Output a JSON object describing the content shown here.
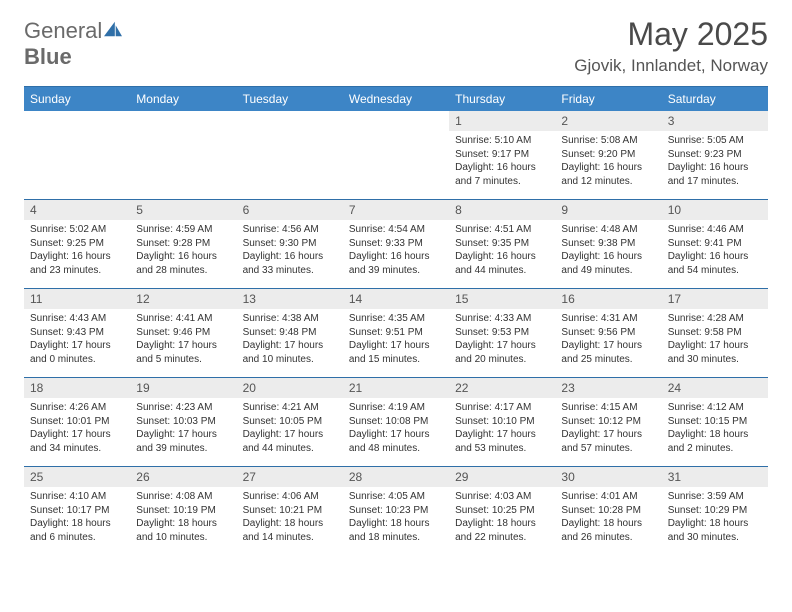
{
  "brand": {
    "part1": "General",
    "part2": "Blue"
  },
  "title": "May 2025",
  "location": "Gjovik, Innlandet, Norway",
  "colors": {
    "header_bg": "#3d85c6",
    "rule": "#2f6fa8",
    "daynum_bg": "#ececec"
  },
  "weekdays": [
    "Sunday",
    "Monday",
    "Tuesday",
    "Wednesday",
    "Thursday",
    "Friday",
    "Saturday"
  ],
  "startOffset": 4,
  "days": [
    {
      "n": 1,
      "sr": "5:10 AM",
      "ss": "9:17 PM",
      "dl": "16 hours and 7 minutes."
    },
    {
      "n": 2,
      "sr": "5:08 AM",
      "ss": "9:20 PM",
      "dl": "16 hours and 12 minutes."
    },
    {
      "n": 3,
      "sr": "5:05 AM",
      "ss": "9:23 PM",
      "dl": "16 hours and 17 minutes."
    },
    {
      "n": 4,
      "sr": "5:02 AM",
      "ss": "9:25 PM",
      "dl": "16 hours and 23 minutes."
    },
    {
      "n": 5,
      "sr": "4:59 AM",
      "ss": "9:28 PM",
      "dl": "16 hours and 28 minutes."
    },
    {
      "n": 6,
      "sr": "4:56 AM",
      "ss": "9:30 PM",
      "dl": "16 hours and 33 minutes."
    },
    {
      "n": 7,
      "sr": "4:54 AM",
      "ss": "9:33 PM",
      "dl": "16 hours and 39 minutes."
    },
    {
      "n": 8,
      "sr": "4:51 AM",
      "ss": "9:35 PM",
      "dl": "16 hours and 44 minutes."
    },
    {
      "n": 9,
      "sr": "4:48 AM",
      "ss": "9:38 PM",
      "dl": "16 hours and 49 minutes."
    },
    {
      "n": 10,
      "sr": "4:46 AM",
      "ss": "9:41 PM",
      "dl": "16 hours and 54 minutes."
    },
    {
      "n": 11,
      "sr": "4:43 AM",
      "ss": "9:43 PM",
      "dl": "17 hours and 0 minutes."
    },
    {
      "n": 12,
      "sr": "4:41 AM",
      "ss": "9:46 PM",
      "dl": "17 hours and 5 minutes."
    },
    {
      "n": 13,
      "sr": "4:38 AM",
      "ss": "9:48 PM",
      "dl": "17 hours and 10 minutes."
    },
    {
      "n": 14,
      "sr": "4:35 AM",
      "ss": "9:51 PM",
      "dl": "17 hours and 15 minutes."
    },
    {
      "n": 15,
      "sr": "4:33 AM",
      "ss": "9:53 PM",
      "dl": "17 hours and 20 minutes."
    },
    {
      "n": 16,
      "sr": "4:31 AM",
      "ss": "9:56 PM",
      "dl": "17 hours and 25 minutes."
    },
    {
      "n": 17,
      "sr": "4:28 AM",
      "ss": "9:58 PM",
      "dl": "17 hours and 30 minutes."
    },
    {
      "n": 18,
      "sr": "4:26 AM",
      "ss": "10:01 PM",
      "dl": "17 hours and 34 minutes."
    },
    {
      "n": 19,
      "sr": "4:23 AM",
      "ss": "10:03 PM",
      "dl": "17 hours and 39 minutes."
    },
    {
      "n": 20,
      "sr": "4:21 AM",
      "ss": "10:05 PM",
      "dl": "17 hours and 44 minutes."
    },
    {
      "n": 21,
      "sr": "4:19 AM",
      "ss": "10:08 PM",
      "dl": "17 hours and 48 minutes."
    },
    {
      "n": 22,
      "sr": "4:17 AM",
      "ss": "10:10 PM",
      "dl": "17 hours and 53 minutes."
    },
    {
      "n": 23,
      "sr": "4:15 AM",
      "ss": "10:12 PM",
      "dl": "17 hours and 57 minutes."
    },
    {
      "n": 24,
      "sr": "4:12 AM",
      "ss": "10:15 PM",
      "dl": "18 hours and 2 minutes."
    },
    {
      "n": 25,
      "sr": "4:10 AM",
      "ss": "10:17 PM",
      "dl": "18 hours and 6 minutes."
    },
    {
      "n": 26,
      "sr": "4:08 AM",
      "ss": "10:19 PM",
      "dl": "18 hours and 10 minutes."
    },
    {
      "n": 27,
      "sr": "4:06 AM",
      "ss": "10:21 PM",
      "dl": "18 hours and 14 minutes."
    },
    {
      "n": 28,
      "sr": "4:05 AM",
      "ss": "10:23 PM",
      "dl": "18 hours and 18 minutes."
    },
    {
      "n": 29,
      "sr": "4:03 AM",
      "ss": "10:25 PM",
      "dl": "18 hours and 22 minutes."
    },
    {
      "n": 30,
      "sr": "4:01 AM",
      "ss": "10:28 PM",
      "dl": "18 hours and 26 minutes."
    },
    {
      "n": 31,
      "sr": "3:59 AM",
      "ss": "10:29 PM",
      "dl": "18 hours and 30 minutes."
    }
  ],
  "labels": {
    "sunrise": "Sunrise:",
    "sunset": "Sunset:",
    "daylight": "Daylight:"
  }
}
